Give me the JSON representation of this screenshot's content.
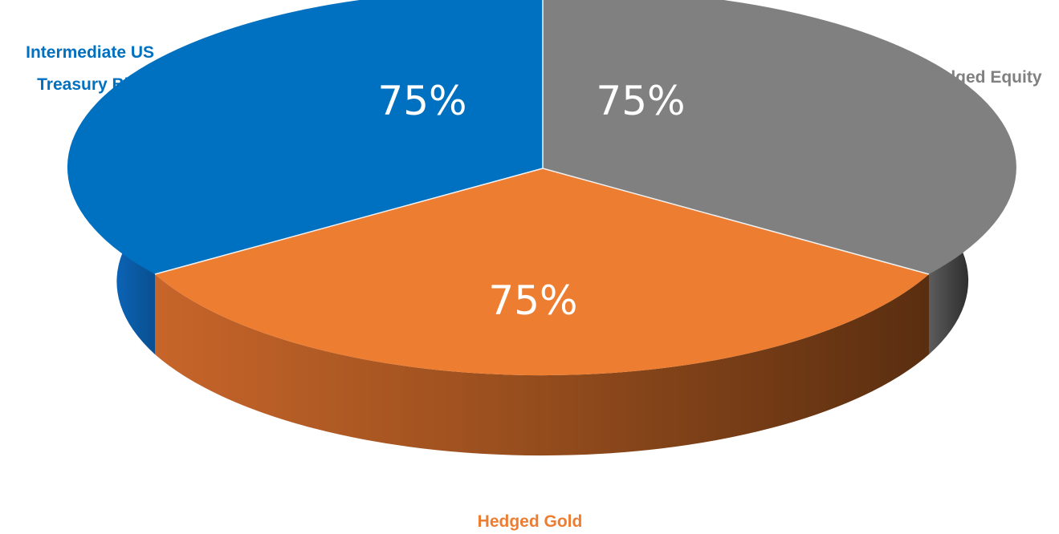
{
  "chart_data": {
    "type": "pie",
    "style": "3d",
    "slices": [
      {
        "category": "Hedged Equity",
        "label_lines": [
          "Hedged Equity"
        ],
        "value": 75,
        "value_label": "75%",
        "color": "#808080",
        "side_color": "#3f3f3f",
        "label_color": "#808080"
      },
      {
        "category": "Hedged Gold",
        "label_lines": [
          "Hedged Gold"
        ],
        "value": 75,
        "value_label": "75%",
        "color": "#ED7D31",
        "side_color": "#8b4514",
        "label_color": "#ED7D31"
      },
      {
        "category": "Intermediate US Treasury Bills",
        "label_lines": [
          "Intermediate US",
          "Treasury Bills"
        ],
        "value": 75,
        "value_label": "75%",
        "color": "#0070C0",
        "side_color": "#0a58a0",
        "label_color": "#0070C0"
      }
    ]
  }
}
